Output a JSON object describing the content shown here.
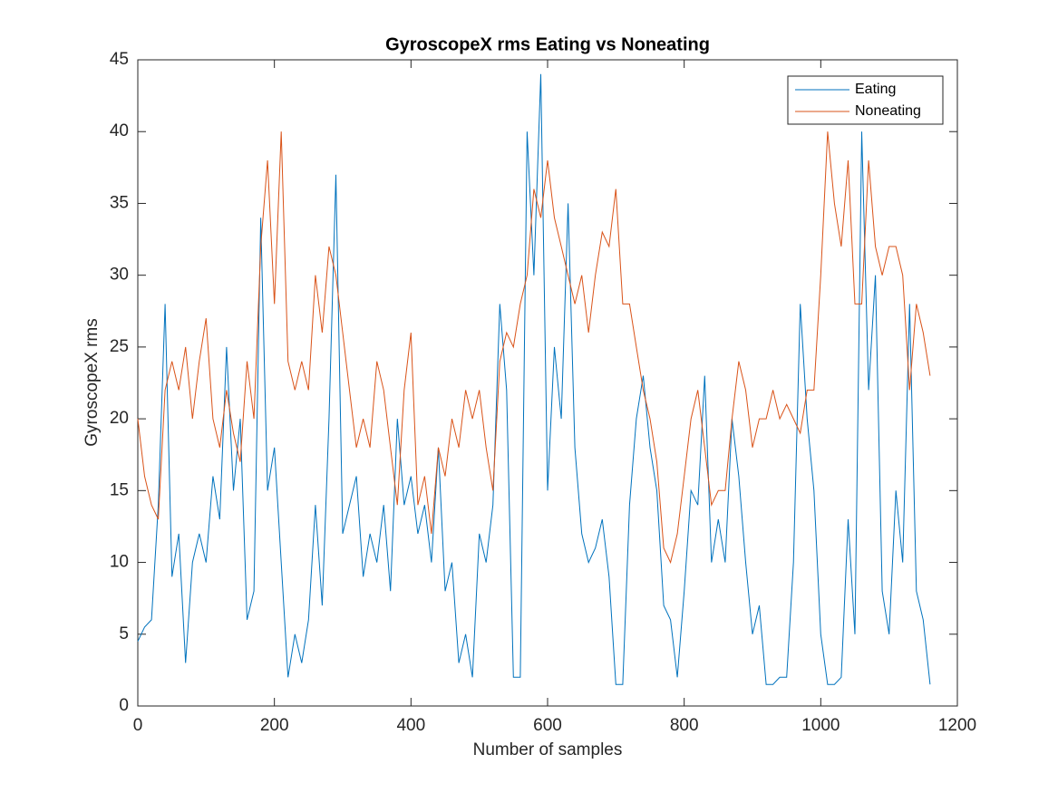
{
  "chart_data": {
    "type": "line",
    "title": "GyroscopeX rms Eating vs Noneating",
    "x_label": "Number of samples",
    "y_label": "GyroscopeX rms",
    "xlim": [
      0,
      1200
    ],
    "xticks": [
      0,
      200,
      400,
      600,
      800,
      1000,
      1200
    ],
    "ylim": [
      0,
      45
    ],
    "yticks": [
      0,
      5,
      10,
      15,
      20,
      25,
      30,
      35,
      40,
      45
    ],
    "grid": false,
    "legend": "upper right",
    "x": [
      0,
      10,
      20,
      30,
      40,
      50,
      60,
      70,
      80,
      90,
      100,
      110,
      120,
      130,
      140,
      150,
      160,
      170,
      180,
      190,
      200,
      210,
      220,
      230,
      240,
      250,
      260,
      270,
      280,
      290,
      300,
      310,
      320,
      330,
      340,
      350,
      360,
      370,
      380,
      390,
      400,
      410,
      420,
      430,
      440,
      450,
      460,
      470,
      480,
      490,
      500,
      510,
      520,
      530,
      540,
      550,
      560,
      570,
      580,
      590,
      600,
      610,
      620,
      630,
      640,
      650,
      660,
      670,
      680,
      690,
      700,
      710,
      720,
      730,
      740,
      750,
      760,
      770,
      780,
      790,
      800,
      810,
      820,
      830,
      840,
      850,
      860,
      870,
      880,
      890,
      900,
      910,
      920,
      930,
      940,
      950,
      960,
      970,
      980,
      990,
      1000,
      1010,
      1020,
      1030,
      1040,
      1050,
      1060,
      1070,
      1080,
      1090,
      1100,
      1110,
      1120,
      1130,
      1140,
      1150,
      1160
    ],
    "series": [
      {
        "name": "Eating",
        "color": "#0072BD",
        "values": [
          4.5,
          5.5,
          6,
          14,
          28,
          9,
          12,
          3,
          10,
          12,
          10,
          16,
          13,
          25,
          15,
          20,
          6,
          8,
          34,
          15,
          18,
          10,
          2,
          5,
          3,
          6,
          14,
          7,
          20,
          37,
          12,
          14,
          16,
          9,
          12,
          10,
          14,
          8,
          20,
          14,
          16,
          12,
          14,
          10,
          18,
          8,
          10,
          3,
          5,
          2,
          12,
          10,
          14,
          28,
          22,
          2,
          2,
          40,
          30,
          44,
          15,
          25,
          20,
          35,
          18,
          12,
          10,
          11,
          13,
          9,
          1.5,
          1.5,
          14,
          20,
          23,
          18,
          15,
          7,
          6,
          2,
          8,
          15,
          14,
          23,
          10,
          13,
          10,
          20,
          16,
          10,
          5,
          7,
          1.5,
          1.5,
          2,
          2,
          10,
          28,
          20,
          15,
          5,
          1.5,
          1.5,
          2,
          13,
          5,
          40,
          22,
          30,
          8,
          5,
          15,
          10,
          28,
          8,
          6,
          1.5
        ]
      },
      {
        "name": "Noneating",
        "color": "#D95319",
        "values": [
          20,
          16,
          14,
          13,
          22,
          24,
          22,
          25,
          20,
          24,
          27,
          20,
          18,
          22,
          19,
          17,
          24,
          20,
          32,
          38,
          28,
          40,
          24,
          22,
          24,
          22,
          30,
          26,
          32,
          30,
          26,
          22,
          18,
          20,
          18,
          24,
          22,
          18,
          14,
          22,
          26,
          14,
          16,
          12,
          18,
          16,
          20,
          18,
          22,
          20,
          22,
          18,
          15,
          24,
          26,
          25,
          28,
          30,
          36,
          34,
          38,
          34,
          32,
          30,
          28,
          30,
          26,
          30,
          33,
          32,
          36,
          28,
          28,
          25,
          22,
          20,
          17,
          11,
          10,
          12,
          16,
          20,
          22,
          18,
          14,
          15,
          15,
          20,
          24,
          22,
          18,
          20,
          20,
          22,
          20,
          21,
          20,
          19,
          22,
          22,
          30,
          40,
          35,
          32,
          38,
          28,
          28,
          38,
          32,
          30,
          32,
          32,
          30,
          22,
          28,
          26,
          23
        ]
      }
    ]
  }
}
